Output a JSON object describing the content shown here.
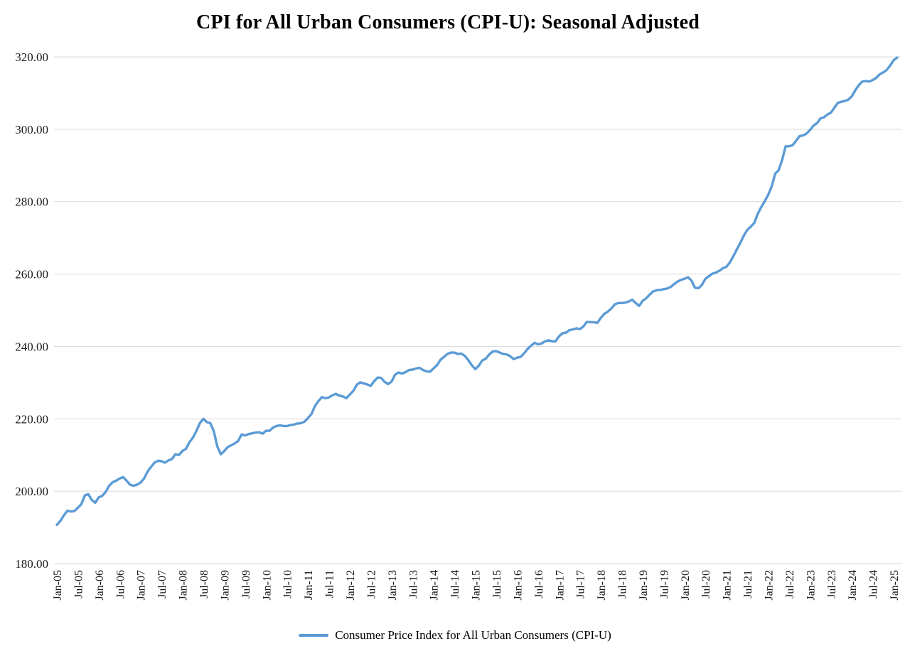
{
  "page": {
    "background": "#ffffff"
  },
  "chart_data": {
    "type": "line",
    "title": "CPI for All Urban Consumers (CPI-U): Seasonal Adjusted",
    "xlabel": "",
    "ylabel": "",
    "grid": "horizontal",
    "legend_position": "bottom",
    "y_axis": {
      "min": 180,
      "max": 320,
      "step": 20,
      "tick_labels": [
        "180.00",
        "200.00",
        "220.00",
        "240.00",
        "260.00",
        "280.00",
        "300.00",
        "320.00"
      ]
    },
    "x_axis": {
      "frequency": "monthly",
      "points_per_tick": 6,
      "tick_labels": [
        "Jan-05",
        "Jul-05",
        "Jan-06",
        "Jul-06",
        "Jan-07",
        "Jul-07",
        "Jan-08",
        "Jul-08",
        "Jan-09",
        "Jul-09",
        "Jan-10",
        "Jul-10",
        "Jan-11",
        "Jul-11",
        "Jan-12",
        "Jul-12",
        "Jan-13",
        "Jul-13",
        "Jan-14",
        "Jul-14",
        "Jan-15",
        "Jul-15",
        "Jan-16",
        "Jul-16",
        "Jan-17",
        "Jul-17",
        "Jan-18",
        "Jul-18",
        "Jan-19",
        "Jul-19",
        "Jan-20",
        "Jul-20",
        "Jan-21",
        "Jul-21",
        "Jan-22",
        "Jul-22",
        "Jan-23",
        "Jul-23",
        "Jan-24",
        "Jul-24",
        "Jan-25"
      ]
    },
    "series": [
      {
        "name": "Consumer Price Index for All Urban Consumers (CPI-U)",
        "color": "#5b9bd5",
        "values": [
          190.7,
          191.8,
          193.3,
          194.6,
          194.4,
          194.5,
          195.4,
          196.4,
          198.8,
          199.2,
          197.6,
          196.8,
          198.3,
          198.7,
          199.8,
          201.5,
          202.5,
          202.9,
          203.5,
          203.9,
          202.9,
          201.8,
          201.5,
          201.8,
          202.4,
          203.5,
          205.4,
          206.7,
          207.9,
          208.4,
          208.3,
          207.9,
          208.5,
          208.9,
          210.2,
          210.0,
          211.1,
          211.7,
          213.5,
          214.8,
          216.6,
          218.8,
          220.0,
          219.1,
          218.8,
          216.6,
          212.4,
          210.2,
          211.1,
          212.2,
          212.7,
          213.2,
          213.9,
          215.7,
          215.4,
          215.8,
          216.0,
          216.2,
          216.3,
          215.9,
          216.7,
          216.7,
          217.6,
          218.0,
          218.2,
          218.0,
          218.0,
          218.3,
          218.4,
          218.7,
          218.8,
          219.2,
          220.2,
          221.3,
          223.5,
          224.9,
          226.0,
          225.7,
          225.9,
          226.5,
          226.9,
          226.4,
          226.2,
          225.7,
          226.7,
          227.7,
          229.4,
          230.1,
          229.8,
          229.5,
          229.1,
          230.4,
          231.4,
          231.3,
          230.2,
          229.6,
          230.3,
          232.2,
          232.8,
          232.5,
          232.9,
          233.5,
          233.6,
          233.9,
          234.1,
          233.5,
          233.1,
          233.0,
          233.9,
          234.8,
          236.3,
          237.1,
          237.9,
          238.3,
          238.3,
          237.9,
          238.0,
          237.4,
          236.2,
          234.8,
          233.7,
          234.7,
          236.1,
          236.6,
          237.8,
          238.6,
          238.7,
          238.3,
          237.9,
          237.8,
          237.3,
          236.5,
          236.9,
          237.1,
          238.1,
          239.3,
          240.2,
          241.0,
          240.6,
          240.8,
          241.4,
          241.7,
          241.4,
          241.4,
          242.8,
          243.6,
          243.8,
          244.5,
          244.7,
          245.0,
          244.8,
          245.5,
          246.8,
          246.7,
          246.7,
          246.5,
          247.9,
          249.0,
          249.6,
          250.5,
          251.6,
          252.0,
          252.0,
          252.1,
          252.4,
          252.9,
          252.0,
          251.2,
          252.6,
          253.3,
          254.3,
          255.2,
          255.5,
          255.6,
          255.8,
          256.0,
          256.4,
          257.2,
          257.9,
          258.4,
          258.7,
          259.1,
          258.2,
          256.2,
          256.1,
          257.0,
          258.7,
          259.4,
          260.1,
          260.4,
          260.9,
          261.6,
          262.0,
          263.2,
          264.9,
          266.8,
          268.6,
          270.6,
          272.2,
          273.1,
          274.1,
          276.6,
          278.5,
          280.1,
          281.9,
          284.2,
          287.7,
          288.7,
          291.5,
          295.3,
          295.3,
          295.6,
          296.8,
          298.1,
          298.3,
          298.8,
          299.8,
          301.0,
          301.7,
          303.0,
          303.3,
          304.1,
          304.6,
          306.0,
          307.3,
          307.6,
          307.8,
          308.2,
          309.1,
          310.8,
          312.2,
          313.2,
          313.3,
          313.2,
          313.6,
          314.2,
          315.2,
          315.7,
          316.4,
          317.6,
          319.1,
          319.8
        ]
      }
    ]
  }
}
